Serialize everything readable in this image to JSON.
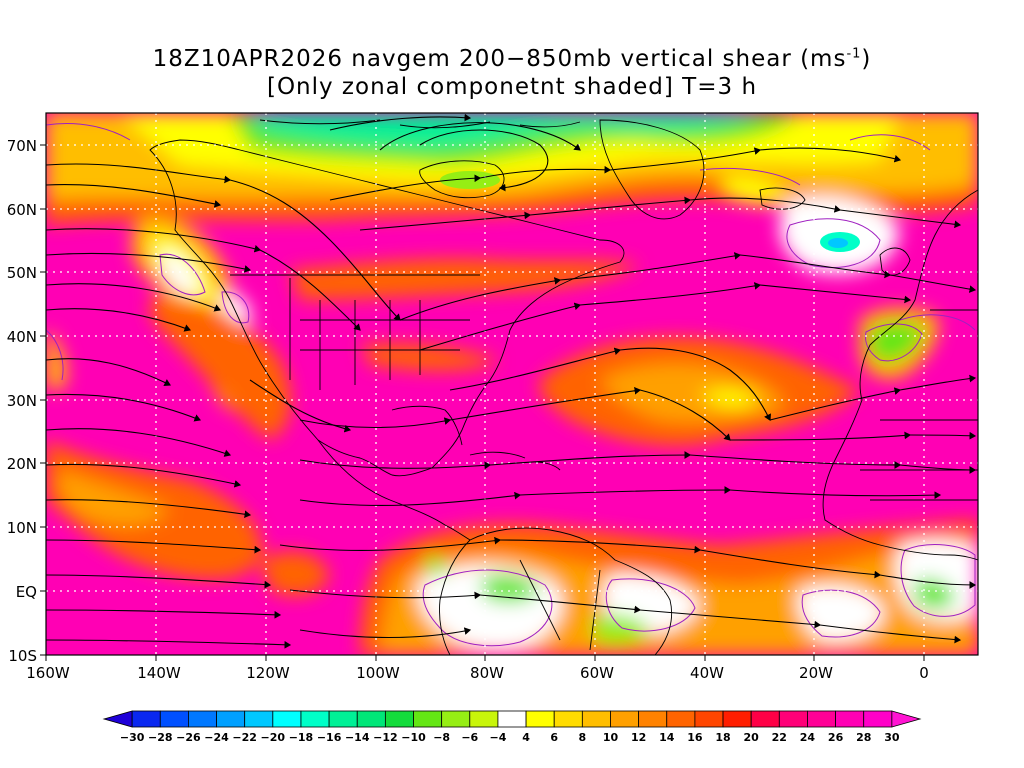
{
  "title": {
    "line1_prefix": "18Z10APR2026 navgem 200−850mb vertical shear (ms",
    "line1_sup": "-1",
    "line1_suffix": ")",
    "line2": "[Only zonal componetnt shaded] T=3 h"
  },
  "lat_labels": [
    "70N",
    "60N",
    "50N",
    "40N",
    "30N",
    "20N",
    "10N",
    "EQ",
    "10S"
  ],
  "lon_labels": [
    "160W",
    "140W",
    "120W",
    "100W",
    "80W",
    "60W",
    "40W",
    "20W",
    "0"
  ],
  "colorbar": {
    "ticks": [
      "−30",
      "−28",
      "−26",
      "−24",
      "−22",
      "−20",
      "−18",
      "−16",
      "−14",
      "−12",
      "−10",
      "−8",
      "−6",
      "−4",
      "4",
      "6",
      "8",
      "10",
      "12",
      "14",
      "16",
      "18",
      "20",
      "22",
      "24",
      "26",
      "28",
      "30"
    ],
    "colors": [
      "#1e00d8",
      "#0a28f0",
      "#0050ff",
      "#0078ff",
      "#00a0ff",
      "#00c8ff",
      "#00ffff",
      "#00ffc8",
      "#00f096",
      "#00e678",
      "#14dc3c",
      "#64e614",
      "#96ee14",
      "#c8f50a",
      "#ffffff",
      "#ffff00",
      "#ffdc00",
      "#ffbe00",
      "#ffa000",
      "#ff8200",
      "#ff6400",
      "#ff4600",
      "#ff1e00",
      "#ff0046",
      "#ff0078",
      "#ff0096",
      "#ff00b4",
      "#ff00c8",
      "#ff14d2"
    ]
  },
  "colors": {
    "background": "#ffffff",
    "dominant_shading": "#ff00b4",
    "coast": "#000000",
    "contour": "#a020c0",
    "grid": "#ffffff"
  }
}
